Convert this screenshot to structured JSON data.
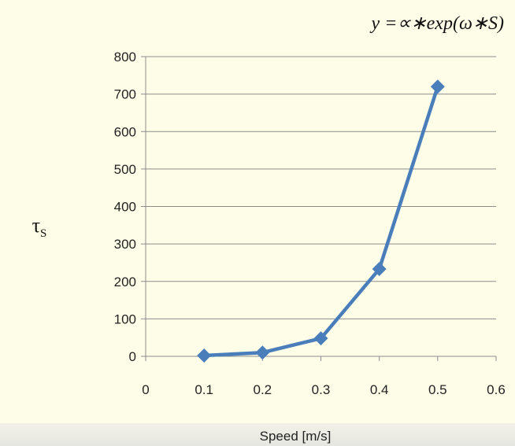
{
  "chart_data": {
    "type": "line",
    "title": "y =∝∗exp(ω∗S)",
    "xlabel": "Speed [m/s]",
    "ylabel": "τ",
    "ylabel_sub": "S",
    "x": [
      0.1,
      0.2,
      0.3,
      0.4,
      0.5
    ],
    "series": [
      {
        "values": [
          2,
          10,
          48,
          233,
          720
        ]
      }
    ],
    "xlim": [
      0,
      0.6
    ],
    "ylim": [
      0,
      800
    ],
    "x_ticks": [
      "0",
      "0.1",
      "0.2",
      "0.3",
      "0.4",
      "0.5",
      "0.6"
    ],
    "y_ticks": [
      "0",
      "100",
      "200",
      "300",
      "400",
      "500",
      "600",
      "700",
      "800"
    ],
    "grid": "horizontal",
    "marker": "diamond",
    "series_color": "#4a7ebb",
    "grid_color": "#8c8c8c"
  }
}
